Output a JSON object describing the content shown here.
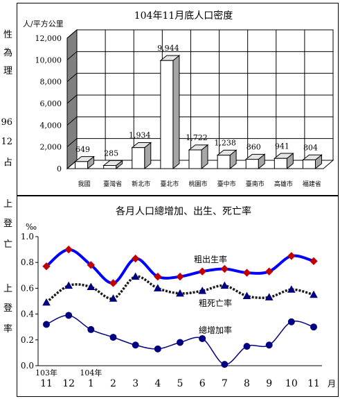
{
  "side_text": [
    "性",
    "為",
    "理",
    "96",
    "12",
    "占",
    "上",
    "登",
    "亡",
    "上",
    "登",
    "率"
  ],
  "chart_data": [
    {
      "type": "bar",
      "title": "104年11月底人口密度",
      "ylabel": "人/平方公里",
      "categories": [
        "我國",
        "臺灣省",
        "新北市",
        "臺北市",
        "桃園市",
        "臺中市",
        "臺南市",
        "高雄市",
        "福建省"
      ],
      "values": [
        649,
        285,
        1934,
        9944,
        1722,
        1238,
        860,
        941,
        804
      ],
      "value_labels": [
        "649",
        "285",
        "1,934",
        "9,944",
        "1,722",
        "1,238",
        "860",
        "941",
        "804"
      ],
      "ylim": [
        0,
        12000
      ],
      "yticks": [
        "0",
        "2,000",
        "4,000",
        "6,000",
        "8,000",
        "10,000",
        "12,000"
      ],
      "grid": true,
      "style": "3d-column"
    },
    {
      "type": "line",
      "title": "各月人口總增加、出生、死亡率",
      "ylabel": "‰",
      "xlabel": "月",
      "categories": [
        "11",
        "12",
        "1",
        "2",
        "3",
        "4",
        "5",
        "6",
        "7",
        "8",
        "9",
        "10",
        "11"
      ],
      "year_labels": [
        {
          "index": 0,
          "text": "103年"
        },
        {
          "index": 2,
          "text": "104年"
        }
      ],
      "ylim": [
        0,
        1.0
      ],
      "yticks": [
        "0.0",
        "0.2",
        "0.4",
        "0.6",
        "0.8",
        "1.0"
      ],
      "series": [
        {
          "name": "粗出生率",
          "color": "#0000ff",
          "marker": "diamond",
          "values": [
            0.77,
            0.9,
            0.78,
            0.64,
            0.83,
            0.69,
            0.69,
            0.73,
            0.75,
            0.72,
            0.73,
            0.85,
            0.81
          ]
        },
        {
          "name": "粗死亡率",
          "color": "#1a1a1a",
          "marker": "triangle",
          "values": [
            0.49,
            0.62,
            0.61,
            0.52,
            0.69,
            0.6,
            0.56,
            0.58,
            0.62,
            0.54,
            0.53,
            0.59,
            0.55
          ]
        },
        {
          "name": "總增加率",
          "color": "#000080",
          "marker": "circle",
          "values": [
            0.32,
            0.39,
            0.28,
            0.22,
            0.16,
            0.13,
            0.18,
            0.21,
            0.01,
            0.15,
            0.16,
            0.34,
            0.3
          ]
        }
      ]
    }
  ]
}
